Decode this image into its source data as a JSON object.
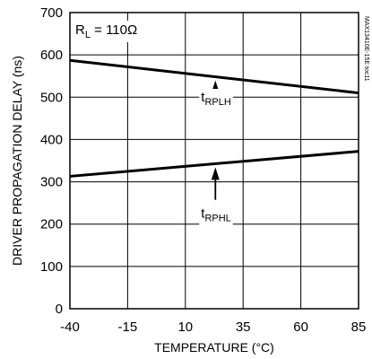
{
  "chart_data": {
    "type": "line",
    "xlabel": "TEMPERATURE (°C)",
    "ylabel": "DRIVER PROPAGATION DELAY (ns)",
    "xlim": [
      -40,
      85
    ],
    "ylim": [
      0,
      700
    ],
    "xticks": [
      -40,
      -15,
      10,
      35,
      60,
      85
    ],
    "yticks": [
      0,
      100,
      200,
      300,
      400,
      500,
      600,
      700
    ],
    "grid": true,
    "condition": {
      "r": "R",
      "sub": "L",
      "rest": " = 110Ω"
    },
    "watermark": "MAX13410E-15E toc11",
    "series": [
      {
        "name": "tRPLH",
        "x": [
          -40,
          85
        ],
        "y": [
          587,
          510
        ]
      },
      {
        "name": "tRPHL",
        "x": [
          -40,
          85
        ],
        "y": [
          313,
          372
        ]
      }
    ],
    "annotations": [
      {
        "main": "t",
        "sub": "RPLH",
        "series": 0,
        "x": 23,
        "label_y": 490
      },
      {
        "main": "t",
        "sub": "RPHL",
        "series": 1,
        "x": 23,
        "label_y": 215
      }
    ]
  }
}
